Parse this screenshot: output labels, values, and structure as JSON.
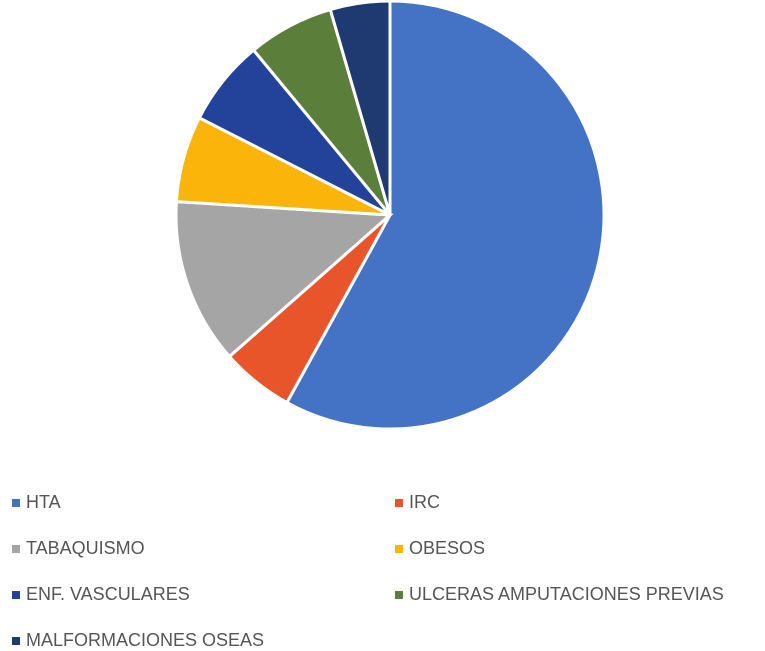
{
  "chart_data": {
    "type": "pie",
    "categories": [
      "HTA",
      "IRC",
      "TABAQUISMO",
      "OBESOS",
      "ENF. VASCULARES",
      "ULCERAS AMPUTACIONES PREVIAS",
      "MALFORMACIONES OSEAS"
    ],
    "values": [
      58,
      5.5,
      12.5,
      6.5,
      6.5,
      6.5,
      4.5
    ],
    "colors": [
      "#4472c4",
      "#e8552a",
      "#a5a5a5",
      "#fbb40a",
      "#23429a",
      "#5b7e3b",
      "#1f3a70"
    ]
  }
}
